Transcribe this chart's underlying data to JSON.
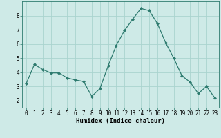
{
  "x": [
    0,
    1,
    2,
    3,
    4,
    5,
    6,
    7,
    8,
    9,
    10,
    11,
    12,
    13,
    14,
    15,
    16,
    17,
    18,
    19,
    20,
    21,
    22,
    23
  ],
  "y": [
    3.2,
    4.55,
    4.2,
    3.95,
    3.95,
    3.6,
    3.45,
    3.35,
    2.3,
    2.85,
    4.45,
    5.9,
    6.95,
    7.75,
    8.5,
    8.35,
    7.45,
    6.1,
    5.0,
    3.75,
    3.3,
    2.5,
    3.0,
    2.2
  ],
  "line_color": "#2d7a6e",
  "marker": "D",
  "marker_size": 2.0,
  "bg_color": "#ceeae7",
  "grid_color": "#aad4cf",
  "xlabel": "Humidex (Indice chaleur)",
  "ylim": [
    1.5,
    9.0
  ],
  "xlim": [
    -0.5,
    23.5
  ],
  "yticks": [
    2,
    3,
    4,
    5,
    6,
    7,
    8
  ],
  "xticks": [
    0,
    1,
    2,
    3,
    4,
    5,
    6,
    7,
    8,
    9,
    10,
    11,
    12,
    13,
    14,
    15,
    16,
    17,
    18,
    19,
    20,
    21,
    22,
    23
  ],
  "tick_fontsize": 5.5,
  "xlabel_fontsize": 6.5,
  "linewidth": 0.9
}
